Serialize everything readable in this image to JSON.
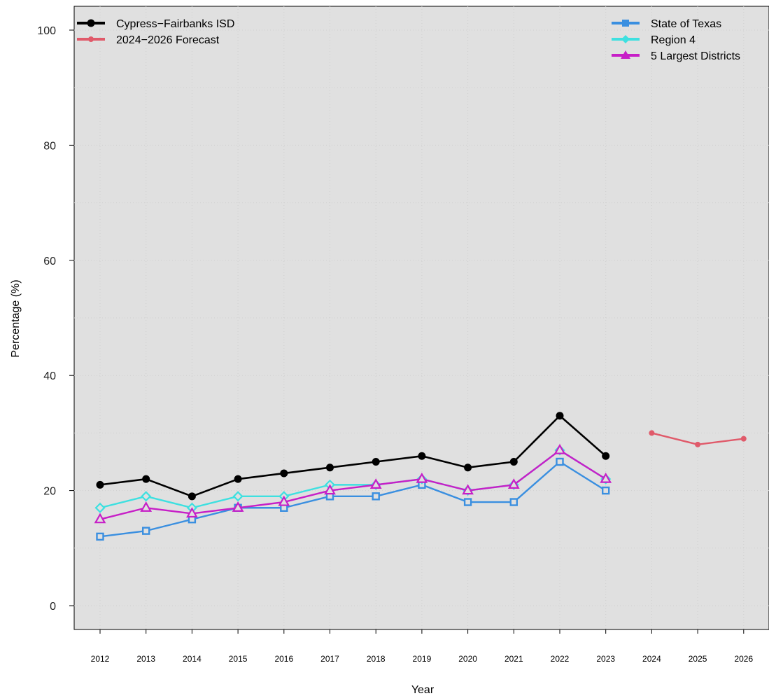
{
  "chart_data": {
    "type": "line",
    "title": "",
    "xlabel": "Year",
    "ylabel": "Percentage (%)",
    "ylim": [
      0,
      100
    ],
    "yticks": [
      0,
      20,
      40,
      60,
      80,
      100
    ],
    "categories": [
      "2012",
      "2013",
      "2014",
      "2015",
      "2016",
      "2017",
      "2018",
      "2019",
      "2020",
      "2021",
      "2022",
      "2023",
      "2024",
      "2025",
      "2026"
    ],
    "grid": true,
    "series": [
      {
        "name": "Cypress−Fairbanks ISD",
        "key": "cfisd",
        "color": "#000000",
        "marker": "circle",
        "x": [
          "2012",
          "2013",
          "2014",
          "2015",
          "2016",
          "2017",
          "2018",
          "2019",
          "2020",
          "2021",
          "2022",
          "2023"
        ],
        "values": [
          21,
          22,
          19,
          22,
          23,
          24,
          25,
          26,
          24,
          25,
          33,
          26
        ]
      },
      {
        "name": "2024−2026 Forecast",
        "key": "forecast",
        "color": "#e05a6a",
        "marker": "dot",
        "x": [
          "2024",
          "2025",
          "2026"
        ],
        "values": [
          30,
          28,
          29
        ]
      },
      {
        "name": "State of Texas",
        "key": "texas",
        "color": "#3a8fe0",
        "marker": "square",
        "x": [
          "2012",
          "2013",
          "2014",
          "2015",
          "2016",
          "2017",
          "2018",
          "2019",
          "2020",
          "2021",
          "2022",
          "2023"
        ],
        "values": [
          12,
          13,
          15,
          17,
          17,
          19,
          19,
          21,
          18,
          18,
          25,
          20
        ]
      },
      {
        "name": "Region 4",
        "key": "region4",
        "color": "#3ee0e0",
        "marker": "diamond",
        "x": [
          "2012",
          "2013",
          "2014",
          "2015",
          "2016",
          "2017",
          "2018",
          "2019",
          "2020",
          "2021",
          "2022",
          "2023"
        ],
        "values": [
          17,
          19,
          17,
          19,
          19,
          21,
          21,
          22,
          20,
          21,
          27,
          22
        ]
      },
      {
        "name": "5 Largest Districts",
        "key": "largest5",
        "color": "#c71fc7",
        "marker": "triangle",
        "x": [
          "2012",
          "2013",
          "2014",
          "2015",
          "2016",
          "2017",
          "2018",
          "2019",
          "2020",
          "2021",
          "2022",
          "2023"
        ],
        "values": [
          15,
          17,
          16,
          17,
          18,
          20,
          21,
          22,
          20,
          21,
          27,
          22
        ]
      }
    ],
    "legend": {
      "left": [
        "cfisd",
        "forecast"
      ],
      "right": [
        "texas",
        "region4",
        "largest5"
      ],
      "placement": "top"
    }
  }
}
